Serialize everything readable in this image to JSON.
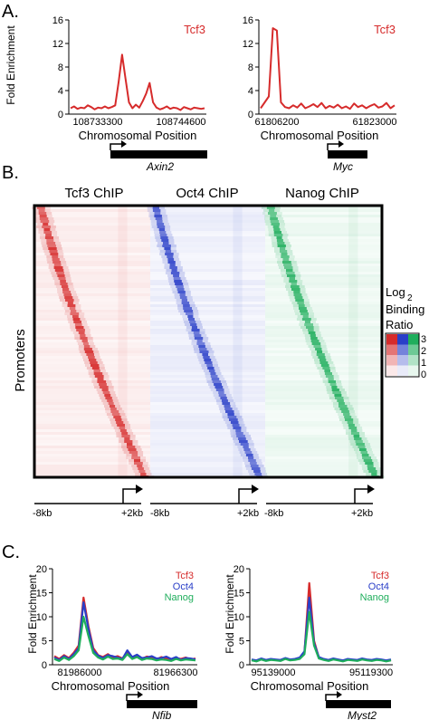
{
  "panels": {
    "a": "A.",
    "b": "B.",
    "c": "C."
  },
  "colors": {
    "tcf3": "#d62b2b",
    "oct4": "#2a3fc8",
    "nanog": "#1fae5c",
    "axis": "#000000"
  },
  "chart_data": [
    {
      "type": "line",
      "panel": "A",
      "legend": [
        "Tcf3"
      ],
      "ylabel": "Fold Enrichment",
      "xlabel": "Chromosomal Position",
      "gene": "Axin2",
      "x_ticklabels": [
        "108733300",
        "108744600"
      ],
      "yticks": [
        0,
        4,
        8,
        12,
        16
      ],
      "ylim": [
        0,
        16
      ],
      "series": [
        {
          "name": "Tcf3",
          "color": "#d62b2b",
          "values": [
            1.0,
            1.3,
            0.9,
            1.1,
            1.0,
            1.5,
            1.2,
            0.8,
            1.1,
            1.0,
            1.3,
            1.0,
            1.2,
            1.5,
            5.5,
            10.1,
            6.0,
            2.0,
            1.0,
            1.6,
            1.1,
            2.2,
            3.5,
            5.3,
            2.0,
            1.1,
            0.8,
            1.0,
            1.3,
            0.9,
            1.1,
            1.0,
            0.7,
            1.2,
            1.0,
            0.8,
            1.1,
            1.0,
            0.9,
            1.0
          ]
        }
      ]
    },
    {
      "type": "line",
      "panel": "A",
      "legend": [
        "Tcf3"
      ],
      "ylabel": "",
      "xlabel": "Chromosomal Position",
      "gene": "Myc",
      "x_ticklabels": [
        "61806200",
        "61823000"
      ],
      "yticks": [
        0,
        4,
        8,
        12,
        16
      ],
      "ylim": [
        0,
        16
      ],
      "series": [
        {
          "name": "Tcf3",
          "color": "#d62b2b",
          "values": [
            1.0,
            2.0,
            3.0,
            14.6,
            14.2,
            2.0,
            1.2,
            1.0,
            1.5,
            1.1,
            1.8,
            1.0,
            1.3,
            1.7,
            1.2,
            1.9,
            1.0,
            1.4,
            1.1,
            1.6,
            1.0,
            1.3,
            0.9,
            1.8,
            1.2,
            1.5,
            1.0,
            1.4,
            1.7,
            1.1,
            1.3,
            1.9,
            1.0,
            1.5
          ]
        }
      ]
    },
    {
      "type": "heatmap",
      "panel": "B",
      "columns": [
        "Tcf3 ChIP",
        "Oct4 ChIP",
        "Nanog ChIP"
      ],
      "ylabel": "Promoters",
      "x_ticklabels": [
        "-8kb",
        "+2kb"
      ],
      "legend_title": [
        "Log",
        "2",
        "Binding",
        "Ratio"
      ],
      "legend_levels": [
        "3",
        "2",
        "1",
        "0"
      ]
    },
    {
      "type": "line",
      "panel": "C",
      "legend": [
        "Tcf3",
        "Oct4",
        "Nanog"
      ],
      "ylabel": "Fold Enrichment",
      "xlabel": "Chromosomal Position",
      "gene": "Nfib",
      "x_ticklabels": [
        "81986000",
        "81966300"
      ],
      "yticks": [
        0,
        5,
        10,
        15,
        20
      ],
      "ylim": [
        0,
        20
      ],
      "series": [
        {
          "name": "Tcf3",
          "color": "#d62b2b",
          "values": [
            1.8,
            1.2,
            2.0,
            1.4,
            2.5,
            4.0,
            14.0,
            8.0,
            3.5,
            2.0,
            1.6,
            2.2,
            1.5,
            1.8,
            1.3,
            2.6,
            1.4,
            1.9,
            1.2,
            1.7,
            1.5,
            1.1,
            1.6,
            1.3,
            1.0,
            1.4,
            1.2,
            1.5,
            1.1,
            1.3
          ]
        },
        {
          "name": "Oct4",
          "color": "#2a3fc8",
          "values": [
            1.5,
            1.0,
            1.8,
            1.2,
            2.2,
            3.5,
            13.0,
            7.5,
            3.0,
            1.9,
            1.4,
            2.0,
            1.8,
            1.5,
            1.2,
            3.0,
            1.6,
            2.1,
            1.4,
            1.5,
            1.8,
            1.3,
            1.4,
            1.7,
            1.2,
            1.6,
            1.0,
            1.4,
            1.3,
            1.1
          ]
        },
        {
          "name": "Nanog",
          "color": "#1fae5c",
          "values": [
            1.2,
            0.8,
            1.5,
            1.0,
            1.8,
            3.0,
            10.0,
            6.0,
            2.5,
            1.5,
            1.1,
            1.7,
            1.2,
            1.3,
            1.0,
            2.2,
            1.2,
            1.6,
            1.0,
            1.3,
            1.2,
            0.9,
            1.1,
            1.0,
            0.8,
            1.2,
            0.9,
            1.1,
            1.0,
            0.9
          ]
        }
      ]
    },
    {
      "type": "line",
      "panel": "C",
      "legend": [
        "Tcf3",
        "Oct4",
        "Nanog"
      ],
      "ylabel": "Fold Enrichment",
      "xlabel": "Chromosomal Position",
      "gene": "Myst2",
      "x_ticklabels": [
        "95139000",
        "95119300"
      ],
      "yticks": [
        0,
        5,
        10,
        15,
        20
      ],
      "ylim": [
        0,
        20
      ],
      "series": [
        {
          "name": "Tcf3",
          "color": "#d62b2b",
          "values": [
            1.0,
            0.8,
            1.2,
            0.9,
            1.1,
            1.0,
            0.9,
            1.3,
            1.0,
            1.1,
            1.4,
            2.5,
            17.0,
            5.0,
            1.5,
            1.1,
            0.9,
            1.2,
            1.0,
            0.8,
            1.1,
            1.0,
            0.9,
            1.2,
            1.0,
            0.9,
            1.1,
            1.0,
            0.8,
            1.0
          ]
        },
        {
          "name": "Oct4",
          "color": "#2a3fc8",
          "values": [
            1.1,
            0.9,
            1.3,
            1.0,
            1.2,
            1.1,
            1.0,
            1.4,
            1.1,
            1.2,
            1.5,
            2.8,
            14.0,
            4.5,
            1.6,
            1.2,
            1.0,
            1.3,
            1.1,
            0.9,
            1.2,
            1.1,
            1.0,
            1.3,
            1.1,
            1.0,
            1.2,
            1.1,
            0.9,
            1.1
          ]
        },
        {
          "name": "Nanog",
          "color": "#1fae5c",
          "values": [
            0.9,
            0.7,
            1.1,
            0.8,
            1.0,
            0.9,
            0.8,
            1.2,
            0.9,
            1.0,
            1.2,
            2.2,
            11.0,
            4.0,
            1.3,
            1.0,
            0.8,
            1.1,
            0.9,
            0.7,
            1.0,
            0.9,
            0.8,
            1.1,
            0.9,
            0.8,
            1.0,
            0.9,
            0.7,
            0.9
          ]
        }
      ]
    }
  ]
}
